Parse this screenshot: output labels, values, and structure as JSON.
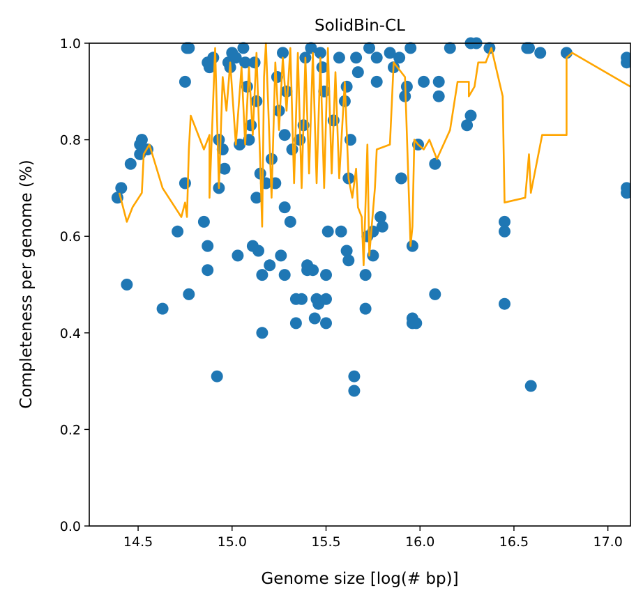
{
  "chart_data": {
    "type": "scatter",
    "title": "SolidBin-CL",
    "xlabel": "Genome size [log(# bp)]",
    "ylabel": "Completeness per genome (%)",
    "xlim": [
      14.24,
      17.12
    ],
    "ylim": [
      0.0,
      1.0
    ],
    "x_ticks": [
      14.5,
      15.0,
      15.5,
      16.0,
      16.5,
      17.0
    ],
    "x_tick_labels": [
      "14.5",
      "15.0",
      "15.5",
      "16.0",
      "16.5",
      "17.0"
    ],
    "y_ticks": [
      0.0,
      0.2,
      0.4,
      0.6,
      0.8,
      1.0
    ],
    "y_tick_labels": [
      "0.0",
      "0.2",
      "0.4",
      "0.6",
      "0.8",
      "1.0"
    ],
    "grid": false,
    "legend": "none",
    "colors": {
      "points": "#1f77b4",
      "line": "#ffa500"
    },
    "series": [
      {
        "kind": "scatter",
        "points": [
          [
            14.39,
            0.68
          ],
          [
            14.41,
            0.7
          ],
          [
            14.44,
            0.5
          ],
          [
            14.46,
            0.75
          ],
          [
            14.51,
            0.79
          ],
          [
            14.51,
            0.77
          ],
          [
            14.52,
            0.8
          ],
          [
            14.55,
            0.78
          ],
          [
            14.63,
            0.45
          ],
          [
            14.71,
            0.61
          ],
          [
            14.75,
            0.71
          ],
          [
            14.75,
            0.92
          ],
          [
            14.76,
            0.99
          ],
          [
            14.77,
            0.99
          ],
          [
            14.77,
            0.48
          ],
          [
            14.85,
            0.63
          ],
          [
            14.87,
            0.53
          ],
          [
            14.87,
            0.58
          ],
          [
            14.87,
            0.96
          ],
          [
            14.88,
            0.95
          ],
          [
            14.9,
            0.97
          ],
          [
            14.92,
            0.31
          ],
          [
            14.93,
            0.7
          ],
          [
            14.93,
            0.8
          ],
          [
            14.95,
            0.78
          ],
          [
            14.96,
            0.74
          ],
          [
            14.98,
            0.96
          ],
          [
            14.99,
            0.95
          ],
          [
            15.0,
            0.98
          ],
          [
            15.02,
            0.97
          ],
          [
            15.03,
            0.56
          ],
          [
            15.04,
            0.79
          ],
          [
            15.06,
            0.99
          ],
          [
            15.07,
            0.96
          ],
          [
            15.08,
            0.91
          ],
          [
            15.09,
            0.8
          ],
          [
            15.1,
            0.83
          ],
          [
            15.11,
            0.58
          ],
          [
            15.12,
            0.96
          ],
          [
            15.13,
            0.88
          ],
          [
            15.13,
            0.68
          ],
          [
            15.14,
            0.57
          ],
          [
            15.15,
            0.73
          ],
          [
            15.16,
            0.52
          ],
          [
            15.16,
            0.4
          ],
          [
            15.18,
            0.71
          ],
          [
            15.2,
            0.54
          ],
          [
            15.21,
            0.76
          ],
          [
            15.23,
            0.71
          ],
          [
            15.24,
            0.93
          ],
          [
            15.25,
            0.86
          ],
          [
            15.26,
            0.56
          ],
          [
            15.27,
            0.98
          ],
          [
            15.28,
            0.81
          ],
          [
            15.28,
            0.52
          ],
          [
            15.28,
            0.66
          ],
          [
            15.29,
            0.9
          ],
          [
            15.31,
            0.63
          ],
          [
            15.32,
            0.78
          ],
          [
            15.34,
            0.42
          ],
          [
            15.34,
            0.47
          ],
          [
            15.36,
            0.8
          ],
          [
            15.37,
            0.47
          ],
          [
            15.38,
            0.83
          ],
          [
            15.39,
            0.97
          ],
          [
            15.4,
            0.53
          ],
          [
            15.4,
            0.54
          ],
          [
            15.42,
            0.99
          ],
          [
            15.43,
            0.53
          ],
          [
            15.44,
            0.43
          ],
          [
            15.45,
            0.47
          ],
          [
            15.46,
            0.46
          ],
          [
            15.47,
            0.98
          ],
          [
            15.48,
            0.95
          ],
          [
            15.49,
            0.9
          ],
          [
            15.5,
            0.47
          ],
          [
            15.5,
            0.42
          ],
          [
            15.5,
            0.52
          ],
          [
            15.51,
            0.61
          ],
          [
            15.54,
            0.84
          ],
          [
            15.57,
            0.97
          ],
          [
            15.58,
            0.61
          ],
          [
            15.6,
            0.88
          ],
          [
            15.61,
            0.91
          ],
          [
            15.61,
            0.57
          ],
          [
            15.62,
            0.55
          ],
          [
            15.62,
            0.72
          ],
          [
            15.63,
            0.8
          ],
          [
            15.65,
            0.31
          ],
          [
            15.65,
            0.28
          ],
          [
            15.66,
            0.97
          ],
          [
            15.67,
            0.94
          ],
          [
            15.71,
            0.52
          ],
          [
            15.71,
            0.45
          ],
          [
            15.72,
            0.6
          ],
          [
            15.73,
            0.99
          ],
          [
            15.75,
            0.56
          ],
          [
            15.75,
            0.61
          ],
          [
            15.77,
            0.97
          ],
          [
            15.77,
            0.92
          ],
          [
            15.79,
            0.64
          ],
          [
            15.8,
            0.62
          ],
          [
            15.84,
            0.98
          ],
          [
            15.86,
            0.95
          ],
          [
            15.89,
            0.97
          ],
          [
            15.9,
            0.72
          ],
          [
            15.92,
            0.89
          ],
          [
            15.93,
            0.91
          ],
          [
            15.95,
            0.99
          ],
          [
            15.96,
            0.58
          ],
          [
            15.96,
            0.43
          ],
          [
            15.96,
            0.42
          ],
          [
            15.98,
            0.42
          ],
          [
            15.99,
            0.79
          ],
          [
            16.02,
            0.92
          ],
          [
            16.08,
            0.48
          ],
          [
            16.08,
            0.75
          ],
          [
            16.1,
            0.92
          ],
          [
            16.1,
            0.89
          ],
          [
            16.16,
            0.99
          ],
          [
            16.25,
            0.83
          ],
          [
            16.27,
            0.85
          ],
          [
            16.27,
            1.0
          ],
          [
            16.3,
            1.0
          ],
          [
            16.37,
            0.99
          ],
          [
            16.45,
            0.63
          ],
          [
            16.45,
            0.61
          ],
          [
            16.45,
            0.46
          ],
          [
            16.57,
            0.99
          ],
          [
            16.58,
            0.99
          ],
          [
            16.59,
            0.29
          ],
          [
            16.64,
            0.98
          ],
          [
            16.78,
            0.98
          ],
          [
            17.1,
            0.96
          ],
          [
            17.1,
            0.97
          ],
          [
            17.1,
            0.7
          ],
          [
            17.1,
            0.69
          ]
        ]
      },
      {
        "kind": "line",
        "points": [
          [
            14.4,
            0.69
          ],
          [
            14.44,
            0.63
          ],
          [
            14.47,
            0.66
          ],
          [
            14.52,
            0.69
          ],
          [
            14.53,
            0.77
          ],
          [
            14.56,
            0.79
          ],
          [
            14.63,
            0.7
          ],
          [
            14.73,
            0.64
          ],
          [
            14.75,
            0.67
          ],
          [
            14.76,
            0.64
          ],
          [
            14.77,
            0.78
          ],
          [
            14.78,
            0.85
          ],
          [
            14.85,
            0.78
          ],
          [
            14.88,
            0.81
          ],
          [
            14.88,
            0.68
          ],
          [
            14.91,
            0.99
          ],
          [
            14.93,
            0.7
          ],
          [
            14.95,
            0.93
          ],
          [
            14.97,
            0.86
          ],
          [
            14.99,
            0.96
          ],
          [
            15.02,
            0.79
          ],
          [
            15.05,
            0.95
          ],
          [
            15.07,
            0.79
          ],
          [
            15.09,
            0.95
          ],
          [
            15.11,
            0.81
          ],
          [
            15.13,
            0.98
          ],
          [
            15.15,
            0.75
          ],
          [
            15.16,
            0.62
          ],
          [
            15.17,
            0.93
          ],
          [
            15.18,
            1.0
          ],
          [
            15.21,
            0.68
          ],
          [
            15.23,
            0.96
          ],
          [
            15.25,
            0.82
          ],
          [
            15.27,
            0.97
          ],
          [
            15.29,
            0.86
          ],
          [
            15.31,
            0.99
          ],
          [
            15.33,
            0.71
          ],
          [
            15.35,
            0.98
          ],
          [
            15.37,
            0.7
          ],
          [
            15.39,
            0.97
          ],
          [
            15.41,
            0.73
          ],
          [
            15.43,
            0.98
          ],
          [
            15.45,
            0.71
          ],
          [
            15.47,
            0.97
          ],
          [
            15.49,
            0.7
          ],
          [
            15.51,
            0.99
          ],
          [
            15.53,
            0.73
          ],
          [
            15.55,
            0.94
          ],
          [
            15.57,
            0.72
          ],
          [
            15.6,
            0.92
          ],
          [
            15.62,
            0.72
          ],
          [
            15.64,
            0.68
          ],
          [
            15.66,
            0.74
          ],
          [
            15.67,
            0.66
          ],
          [
            15.69,
            0.64
          ],
          [
            15.7,
            0.54
          ],
          [
            15.72,
            0.79
          ],
          [
            15.73,
            0.56
          ],
          [
            15.76,
            0.7
          ],
          [
            15.77,
            0.78
          ],
          [
            15.84,
            0.79
          ],
          [
            15.86,
            0.96
          ],
          [
            15.92,
            0.93
          ],
          [
            15.95,
            0.58
          ],
          [
            15.96,
            0.62
          ],
          [
            15.97,
            0.8
          ],
          [
            15.99,
            0.79
          ],
          [
            16.02,
            0.78
          ],
          [
            16.05,
            0.8
          ],
          [
            16.09,
            0.76
          ],
          [
            16.16,
            0.82
          ],
          [
            16.2,
            0.92
          ],
          [
            16.26,
            0.92
          ],
          [
            16.26,
            0.89
          ],
          [
            16.29,
            0.91
          ],
          [
            16.31,
            0.96
          ],
          [
            16.35,
            0.96
          ],
          [
            16.38,
            0.99
          ],
          [
            16.44,
            0.89
          ],
          [
            16.45,
            0.67
          ],
          [
            16.56,
            0.68
          ],
          [
            16.58,
            0.77
          ],
          [
            16.59,
            0.69
          ],
          [
            16.65,
            0.81
          ],
          [
            16.78,
            0.81
          ],
          [
            16.78,
            0.97
          ],
          [
            16.81,
            0.98
          ],
          [
            17.12,
            0.91
          ]
        ]
      }
    ]
  }
}
